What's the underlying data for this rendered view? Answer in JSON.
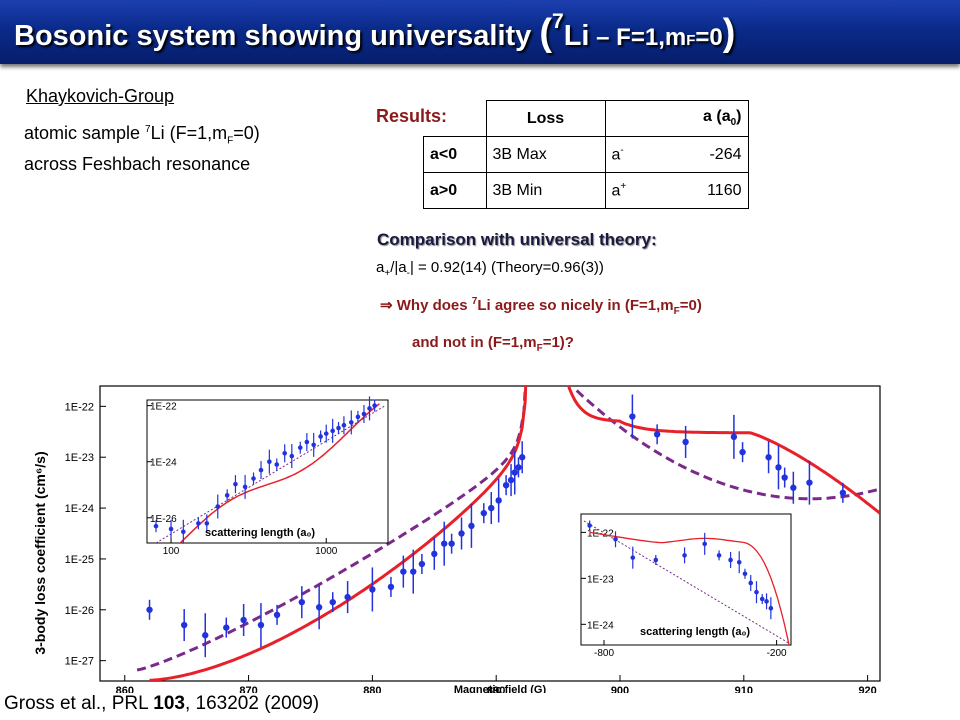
{
  "slide": {
    "title_main": "Bosonic system showing universality ",
    "title_open": "(",
    "title_sup": "7",
    "title_li": "Li",
    "title_rest": " – F=1,m",
    "title_sub": "F",
    "title_end": "=0",
    "title_close": ")"
  },
  "group": {
    "name": "Khaykovich-Group",
    "line1_pre": "atomic sample ",
    "line1_sup": "7",
    "line1_mid": "Li (F=1,m",
    "line1_sub": "F",
    "line1_end": "=0)",
    "line2": "across Feshbach resonance"
  },
  "results": {
    "label": "Results:",
    "headers": [
      "Loss",
      "a (a",
      "0",
      ")"
    ],
    "rows": [
      {
        "cond": "a<0",
        "loss": "3B Max",
        "sym": "a",
        "sym_sup": "-",
        "value": "-264"
      },
      {
        "cond": "a>0",
        "loss": "3B Min",
        "sym": "a",
        "sym_sup": "+",
        "value": "1160"
      }
    ]
  },
  "comparison": {
    "title": "Comparison with universal theory:",
    "ratio_a": "a",
    "ratio_sub1": "+",
    "ratio_mid": "/|a",
    "ratio_sub2": "-",
    "ratio_end": "| = 0.92(14) (Theory=0.96(3))",
    "arrow": "⇒",
    "why1_pre": " Why does ",
    "why1_sup": "7",
    "why1_mid": "Li agree so nicely in (F=1,m",
    "why1_sub": "F",
    "why1_end": "=0)",
    "why2_pre": "and not in (F=1,m",
    "why2_sub": "F",
    "why2_end": "=1)?"
  },
  "citation": {
    "pre": "Gross et al., PRL ",
    "vol": "103",
    "post": ", 163202 (2009)"
  },
  "chart_data": [
    {
      "type": "scatter",
      "ylabel": "3-body loss coefficient (cm⁶/s)",
      "xlabel": "Magnetic field (G)",
      "x_ticks": [
        "860",
        "870",
        "880",
        "890",
        "900",
        "910",
        "920"
      ],
      "y_ticks": [
        "1E-27",
        "1E-26",
        "1E-25",
        "1E-24",
        "1E-23",
        "1E-22"
      ],
      "xlim": [
        858,
        921
      ],
      "ylim_log10": [
        -27.4,
        -21.6
      ],
      "colors": {
        "points": "#2233dd",
        "fit": "#e8202a",
        "theory": "#7a2a8a"
      },
      "points": [
        [
          862,
          -26.0
        ],
        [
          864.8,
          -26.3
        ],
        [
          866.5,
          -26.5
        ],
        [
          868.2,
          -26.35
        ],
        [
          869.6,
          -26.2
        ],
        [
          871,
          -26.3
        ],
        [
          872.3,
          -26.1
        ],
        [
          874.3,
          -25.85
        ],
        [
          875.7,
          -25.95
        ],
        [
          876.8,
          -25.85
        ],
        [
          878,
          -25.75
        ],
        [
          880,
          -25.6
        ],
        [
          881.5,
          -25.55
        ],
        [
          882.5,
          -25.25
        ],
        [
          883.3,
          -25.25
        ],
        [
          884,
          -25.1
        ],
        [
          885,
          -24.9
        ],
        [
          885.8,
          -24.7
        ],
        [
          886.4,
          -24.7
        ],
        [
          887.2,
          -24.5
        ],
        [
          888,
          -24.35
        ],
        [
          889,
          -24.1
        ],
        [
          889.6,
          -24.0
        ],
        [
          890.2,
          -23.85
        ],
        [
          890.8,
          -23.55
        ],
        [
          891.2,
          -23.45
        ],
        [
          891.5,
          -23.3
        ],
        [
          891.8,
          -23.2
        ],
        [
          892.1,
          -23.0
        ],
        [
          901,
          -22.2
        ],
        [
          903,
          -22.55
        ],
        [
          905.3,
          -22.7
        ],
        [
          909.2,
          -22.6
        ],
        [
          909.9,
          -22.9
        ],
        [
          912,
          -23.0
        ],
        [
          912.8,
          -23.2
        ],
        [
          913.3,
          -23.4
        ],
        [
          914,
          -23.6
        ],
        [
          915.3,
          -23.5
        ],
        [
          918,
          -23.7
        ]
      ]
    },
    {
      "type": "scatter",
      "xlabel": "scattering length (a₀)",
      "x_ticks": [
        "100",
        "1000"
      ],
      "y_ticks": [
        "1E-22",
        "1E-24",
        "1E-26"
      ],
      "xscale": "log",
      "xlim": [
        70,
        2500
      ],
      "ylim_log10": [
        -26.9,
        -21.8
      ]
    },
    {
      "type": "scatter",
      "xlabel": "scattering length (a₀)",
      "x_ticks": [
        "-800",
        "-200"
      ],
      "y_ticks": [
        "1E-22",
        "1E-23",
        "1E-24"
      ],
      "xlim": [
        -880,
        -150
      ],
      "ylim_log10": [
        -24.45,
        -21.6
      ]
    }
  ]
}
